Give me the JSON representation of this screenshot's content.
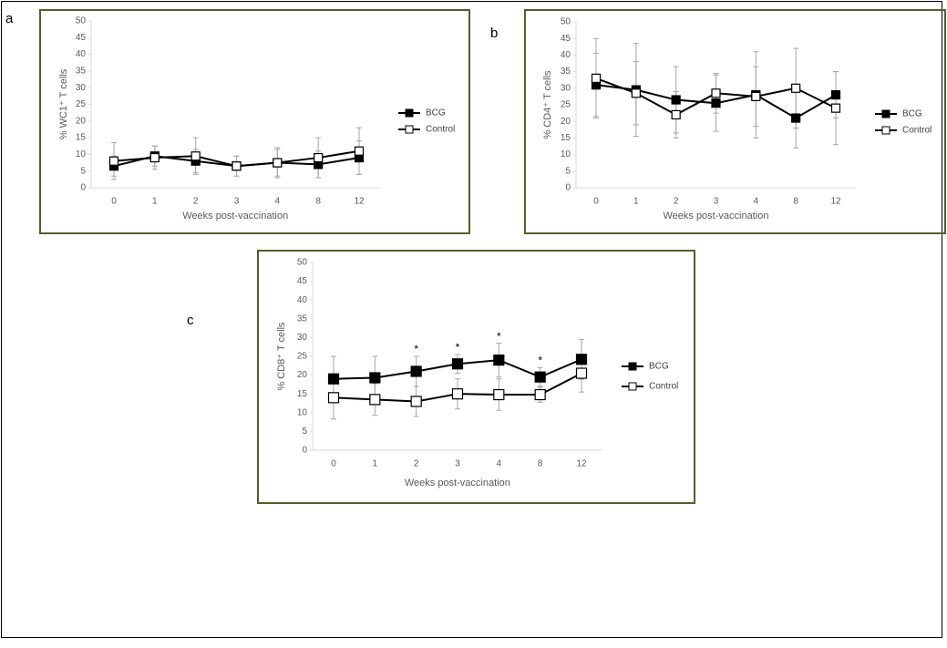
{
  "chart_data": [
    {
      "type": "line",
      "label": "a",
      "ylabel": "% WC1⁺ T cells",
      "xlabel": "Weeks post-vaccination",
      "categories": [
        "0",
        "1",
        "2",
        "3",
        "4",
        "8",
        "12"
      ],
      "ylim": [
        0,
        50
      ],
      "yticks": [
        0,
        5,
        10,
        15,
        20,
        25,
        30,
        35,
        40,
        45,
        50
      ],
      "error_color": "#a6a6a6",
      "series": [
        {
          "name": "BCG",
          "color": "#000000",
          "marker_fill": "#000000",
          "values": [
            6.5,
            9.5,
            8,
            6.5,
            7.5,
            7,
            9
          ],
          "errors": [
            3,
            3,
            3.5,
            3,
            4,
            4,
            5
          ]
        },
        {
          "name": "Control",
          "color": "#000000",
          "marker_fill": "#ffffff",
          "values": [
            8,
            9,
            9.5,
            6.5,
            7.5,
            9,
            11
          ],
          "errors": [
            5.5,
            3.5,
            5.5,
            3,
            4.5,
            6,
            7
          ]
        }
      ]
    },
    {
      "type": "line",
      "label": "b",
      "ylabel": "% CD4⁺ T cells",
      "xlabel": "Weeks post-vaccination",
      "categories": [
        "0",
        "1",
        "2",
        "3",
        "4",
        "8",
        "12"
      ],
      "ylim": [
        0,
        50
      ],
      "yticks": [
        0,
        5,
        10,
        15,
        20,
        25,
        30,
        35,
        40,
        45,
        50
      ],
      "error_color": "#a6a6a6",
      "series": [
        {
          "name": "BCG",
          "color": "#000000",
          "marker_fill": "#000000",
          "values": [
            31,
            29.5,
            26.5,
            25.5,
            28,
            21,
            28
          ],
          "errors": [
            9.5,
            14,
            10,
            8.5,
            13,
            9,
            7
          ]
        },
        {
          "name": "Control",
          "color": "#000000",
          "marker_fill": "#ffffff",
          "values": [
            33,
            28.5,
            22,
            28.5,
            27.5,
            30,
            24
          ],
          "errors": [
            12,
            9.5,
            7,
            6,
            9,
            12,
            11
          ]
        }
      ]
    },
    {
      "type": "line",
      "label": "c",
      "ylabel": "% CD8⁺ T cells",
      "xlabel": "Weeks post-vaccination",
      "categories": [
        "0",
        "1",
        "2",
        "3",
        "4",
        "8",
        "12"
      ],
      "ylim": [
        0,
        50
      ],
      "yticks": [
        0,
        5,
        10,
        15,
        20,
        25,
        30,
        35,
        40,
        45,
        50
      ],
      "error_color": "#a6a6a6",
      "significance": [
        null,
        null,
        "*",
        "*",
        "*",
        "*",
        null
      ],
      "series": [
        {
          "name": "BCG",
          "color": "#000000",
          "marker_fill": "#000000",
          "values": [
            19,
            19.3,
            21,
            23,
            24,
            19.5,
            24.2
          ],
          "errors": [
            6,
            5.7,
            4,
            2.5,
            4.5,
            2.5,
            5.3
          ]
        },
        {
          "name": "Control",
          "color": "#000000",
          "marker_fill": "#ffffff",
          "values": [
            14,
            13.5,
            13,
            15,
            14.8,
            14.8,
            20.5
          ],
          "errors": [
            5.7,
            4.2,
            4,
            4,
            4.2,
            2,
            5
          ]
        }
      ]
    }
  ]
}
